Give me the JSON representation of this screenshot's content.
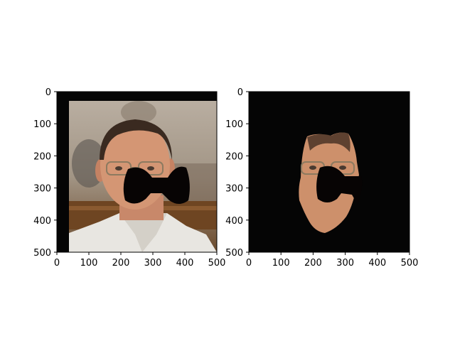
{
  "chart_data": [
    {
      "type": "image",
      "content": "photo of a man's face in a courtroom with a black bow-tie shaped mask over the nose and mouth",
      "xlim": [
        0,
        500
      ],
      "ylim": [
        500,
        0
      ],
      "x_ticks": [
        0,
        100,
        200,
        300,
        400,
        500
      ],
      "y_ticks": [
        0,
        100,
        200,
        300,
        400,
        500
      ],
      "title": "",
      "xlabel": "",
      "ylabel": ""
    },
    {
      "type": "image",
      "content": "segmented face region on a black background, with the same bow-tie mask over the nose and mouth",
      "xlim": [
        0,
        500
      ],
      "ylim": [
        500,
        0
      ],
      "x_ticks": [
        0,
        100,
        200,
        300,
        400,
        500
      ],
      "y_ticks": [
        0,
        100,
        200,
        300,
        400,
        500
      ],
      "title": "",
      "xlabel": "",
      "ylabel": ""
    }
  ]
}
